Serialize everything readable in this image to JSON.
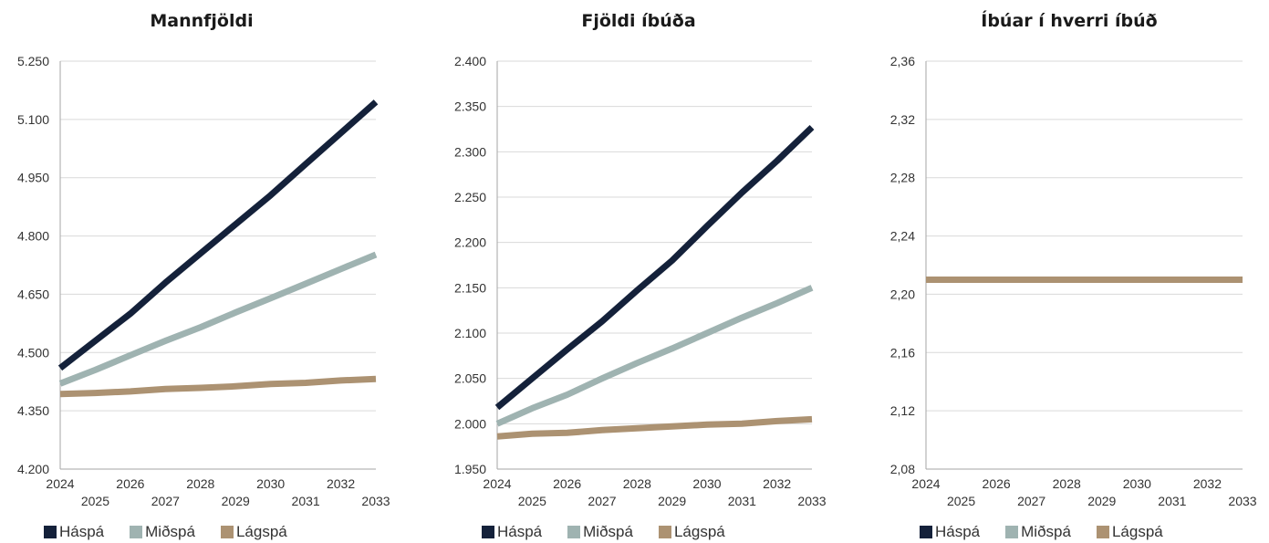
{
  "colors": {
    "haspa": "#14213a",
    "midspa": "#9fb3b1",
    "lagspa": "#ac9272",
    "grid": "#d9d9d9",
    "axis": "#a6a6a6"
  },
  "legend": [
    {
      "label": "Háspá",
      "color": "#14213a"
    },
    {
      "label": "Miðspá",
      "color": "#9fb3b1"
    },
    {
      "label": "Lágspá",
      "color": "#ac9272"
    }
  ],
  "chart_data": [
    {
      "type": "line",
      "title": "Mannfjöldi",
      "categories": [
        "2024",
        "2025",
        "2026",
        "2027",
        "2028",
        "2029",
        "2030",
        "2031",
        "2032",
        "2033"
      ],
      "ylim": [
        4200,
        5250
      ],
      "yticks": [
        "4.200",
        "4.350",
        "4.500",
        "4.650",
        "4.800",
        "4.950",
        "5.100",
        "5.250"
      ],
      "series": [
        {
          "name": "Háspá",
          "color": "#14213a",
          "values": [
            4460,
            4530,
            4600,
            4680,
            4755,
            4830,
            4905,
            4985,
            5065,
            5145
          ]
        },
        {
          "name": "Miðspá",
          "color": "#9fb3b1",
          "values": [
            4420,
            4455,
            4493,
            4530,
            4565,
            4603,
            4640,
            4677,
            4715,
            4752
          ]
        },
        {
          "name": "Lágspá",
          "color": "#ac9272",
          "values": [
            4393,
            4396,
            4400,
            4406,
            4409,
            4413,
            4419,
            4422,
            4428,
            4432
          ]
        }
      ]
    },
    {
      "type": "line",
      "title": "Fjöldi íbúða",
      "categories": [
        "2024",
        "2025",
        "2026",
        "2027",
        "2028",
        "2029",
        "2030",
        "2031",
        "2032",
        "2033"
      ],
      "ylim": [
        1950,
        2400
      ],
      "yticks": [
        "1.950",
        "2.000",
        "2.050",
        "2.100",
        "2.150",
        "2.200",
        "2.250",
        "2.300",
        "2.350",
        "2.400"
      ],
      "series": [
        {
          "name": "Háspá",
          "color": "#14213a",
          "values": [
            2018,
            2050,
            2082,
            2113,
            2147,
            2180,
            2218,
            2255,
            2290,
            2327
          ]
        },
        {
          "name": "Miðspá",
          "color": "#9fb3b1",
          "values": [
            2000,
            2017,
            2032,
            2050,
            2067,
            2083,
            2100,
            2117,
            2133,
            2150
          ]
        },
        {
          "name": "Lágspá",
          "color": "#ac9272",
          "values": [
            1986,
            1989,
            1990,
            1993,
            1995,
            1997,
            1999,
            2000,
            2003,
            2005
          ]
        }
      ]
    },
    {
      "type": "line",
      "title": "Íbúar í hverri íbúð",
      "categories": [
        "2024",
        "2025",
        "2026",
        "2027",
        "2028",
        "2029",
        "2030",
        "2031",
        "2032",
        "2033"
      ],
      "ylim": [
        2.08,
        2.36
      ],
      "yticks": [
        "2,08",
        "2,12",
        "2,16",
        "2,20",
        "2,24",
        "2,28",
        "2,32",
        "2,36"
      ],
      "series": [
        {
          "name": "Háspá",
          "color": "#14213a",
          "values": [
            2.21,
            2.21,
            2.21,
            2.21,
            2.21,
            2.21,
            2.21,
            2.21,
            2.21,
            2.21
          ]
        },
        {
          "name": "Miðspá",
          "color": "#9fb3b1",
          "values": [
            2.21,
            2.21,
            2.21,
            2.21,
            2.21,
            2.21,
            2.21,
            2.21,
            2.21,
            2.21
          ]
        },
        {
          "name": "Lágspá",
          "color": "#ac9272",
          "values": [
            2.21,
            2.21,
            2.21,
            2.21,
            2.21,
            2.21,
            2.21,
            2.21,
            2.21,
            2.21
          ]
        }
      ]
    }
  ]
}
